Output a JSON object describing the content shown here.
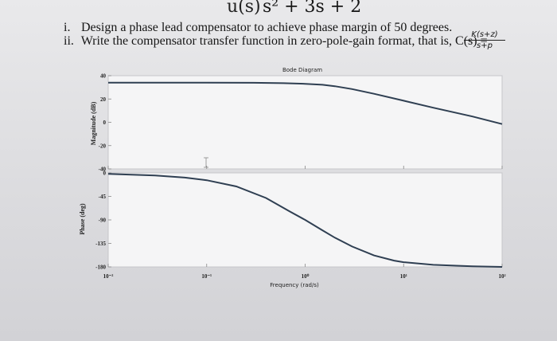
{
  "header": {
    "top_formula_fragment": "u(s)",
    "top_formula": "s² + 3s + 2",
    "q1_num": "i.",
    "q1_text": "Design a phase lead compensator to achieve phase margin of 50 degrees.",
    "q2_num": "ii.",
    "q2_text": "Write the compensator transfer function in zero-pole-gain format, that is, C(s) =",
    "tf_numerator": "K(s+z)",
    "tf_denominator": "s+p"
  },
  "chart_data": {
    "type": "line",
    "title": "Bode Diagram",
    "xlabel": "Frequency (rad/s)",
    "x_scale": "log",
    "xlim": [
      0.01,
      100
    ],
    "x_ticks": [
      "10⁻²",
      "10⁻¹",
      "10⁰",
      "10¹",
      "10²"
    ],
    "grid": false,
    "panels": [
      {
        "name": "magnitude",
        "ylabel": "Magnitude (dB)",
        "ylim": [
          -40,
          40
        ],
        "y_ticks": [
          "40",
          "20",
          "0",
          "-20",
          "-40"
        ],
        "x": [
          0.01,
          0.1,
          0.3,
          0.6,
          1,
          1.5,
          2,
          3,
          5,
          10,
          20,
          50,
          100
        ],
        "y": [
          34,
          34,
          33.9,
          33.6,
          33,
          32.2,
          31,
          28.5,
          24.5,
          18.5,
          12.5,
          5,
          -1.5
        ]
      },
      {
        "name": "phase",
        "ylabel": "Phase (deg)",
        "ylim": [
          -180,
          0
        ],
        "y_ticks": [
          "0",
          "-45",
          "-90",
          "-135",
          "-180"
        ],
        "x": [
          0.01,
          0.03,
          0.06,
          0.1,
          0.2,
          0.4,
          0.7,
          1,
          1.5,
          2,
          3,
          5,
          8,
          10,
          20,
          50,
          100
        ],
        "y": [
          -2,
          -5,
          -9,
          -14,
          -26,
          -48,
          -74,
          -90,
          -110,
          -124,
          -141,
          -158,
          -168,
          -171,
          -176,
          -179,
          -180
        ]
      }
    ]
  }
}
